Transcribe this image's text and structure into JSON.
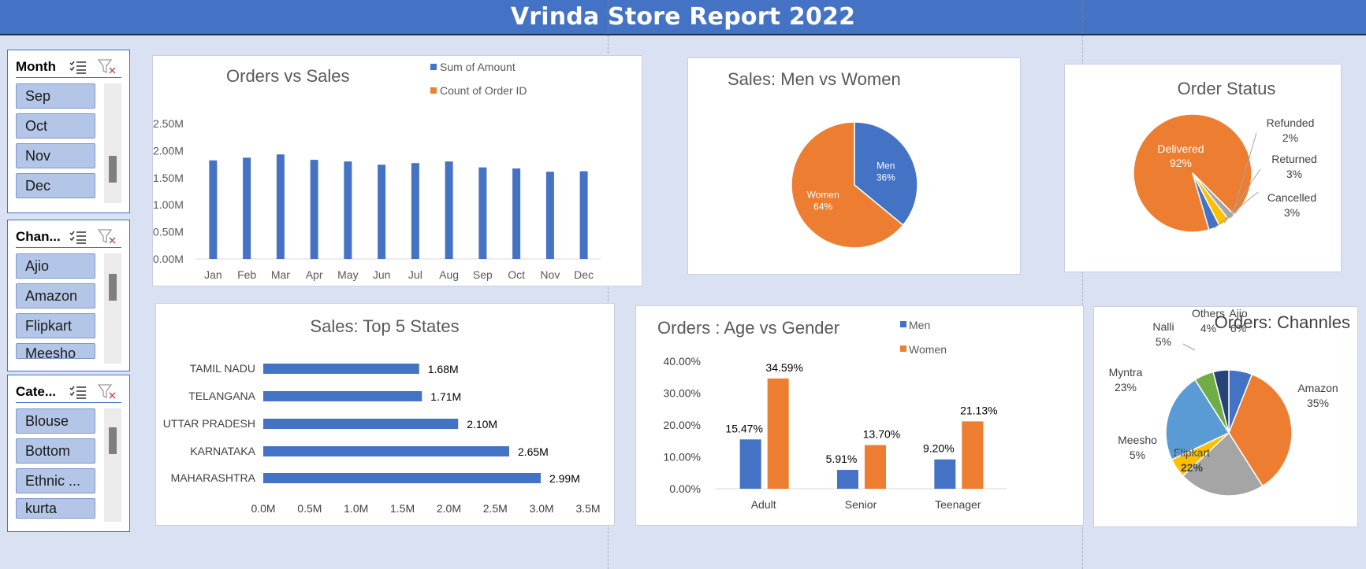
{
  "report_title": "Vrinda Store Report 2022",
  "slicers": {
    "month": {
      "title": "Month",
      "items": [
        "Sep",
        "Oct",
        "Nov",
        "Dec"
      ]
    },
    "channel": {
      "title": "Chan...",
      "items": [
        "Ajio",
        "Amazon",
        "Flipkart",
        "Meesho"
      ]
    },
    "category": {
      "title": "Cate...",
      "items": [
        "Blouse",
        "Bottom",
        "Ethnic ...",
        "kurta"
      ]
    }
  },
  "colors": {
    "blue": "#4472c4",
    "orange": "#ed7d31",
    "gray": "#a5a5a5",
    "yellow": "#ffc000",
    "lightblue": "#5b9bd5",
    "green": "#70ad47",
    "navy": "#264478"
  },
  "chart_data": [
    {
      "id": "orders_vs_sales",
      "type": "bar",
      "title": "Orders vs Sales",
      "legend": [
        "Sum of Amount",
        "Count of Order ID"
      ],
      "categories": [
        "Jan",
        "Feb",
        "Mar",
        "Apr",
        "May",
        "Jun",
        "Jul",
        "Aug",
        "Sep",
        "Oct",
        "Nov",
        "Dec"
      ],
      "series": [
        {
          "name": "Sum of Amount",
          "values": [
            1.82,
            1.87,
            1.93,
            1.83,
            1.8,
            1.74,
            1.77,
            1.8,
            1.69,
            1.67,
            1.61,
            1.62
          ]
        }
      ],
      "yticks": [
        "0.00M",
        "0.50M",
        "1.00M",
        "1.50M",
        "2.00M",
        "2.50M"
      ],
      "ylim": [
        0,
        2.5
      ]
    },
    {
      "id": "sales_men_women",
      "type": "pie",
      "title": "Sales: Men vs Women",
      "labels": [
        "Men",
        "Women"
      ],
      "values": [
        36,
        64
      ],
      "display": [
        "36%",
        "64%"
      ]
    },
    {
      "id": "order_status",
      "type": "pie",
      "title": "Order Status",
      "labels": [
        "Delivered",
        "Refunded",
        "Returned",
        "Cancelled"
      ],
      "values": [
        92,
        2,
        3,
        3
      ],
      "display": [
        "92%",
        "2%",
        "3%",
        "3%"
      ]
    },
    {
      "id": "top5_states",
      "type": "bar",
      "orientation": "horizontal",
      "title": "Sales: Top 5 States",
      "categories": [
        "TAMIL NADU",
        "TELANGANA",
        "UTTAR PRADESH",
        "KARNATAKA",
        "MAHARASHTRA"
      ],
      "values": [
        1.68,
        1.71,
        2.1,
        2.65,
        2.99
      ],
      "value_labels": [
        "1.68M",
        "1.71M",
        "2.10M",
        "2.65M",
        "2.99M"
      ],
      "xticks": [
        "0.0M",
        "0.5M",
        "1.0M",
        "1.5M",
        "2.0M",
        "2.5M",
        "3.0M",
        "3.5M"
      ],
      "xlim": [
        0,
        3.5
      ]
    },
    {
      "id": "age_vs_gender",
      "type": "bar",
      "title": "Orders : Age vs Gender",
      "legend": [
        "Men",
        "Women"
      ],
      "categories": [
        "Adult",
        "Senior",
        "Teenager"
      ],
      "series": [
        {
          "name": "Men",
          "values": [
            15.47,
            5.91,
            9.2
          ],
          "labels": [
            "15.47%",
            "5.91%",
            "9.20%"
          ]
        },
        {
          "name": "Women",
          "values": [
            34.59,
            13.7,
            21.13
          ],
          "labels": [
            "34.59%",
            "13.70%",
            "21.13%"
          ]
        }
      ],
      "yticks": [
        "0.00%",
        "10.00%",
        "20.00%",
        "30.00%",
        "40.00%"
      ],
      "ylim": [
        0,
        40
      ]
    },
    {
      "id": "orders_channels",
      "type": "pie",
      "title": "Orders: Channles",
      "labels": [
        "Ajio",
        "Amazon",
        "Flipkart",
        "Meesho",
        "Myntra",
        "Nalli",
        "Others"
      ],
      "values": [
        6,
        35,
        22,
        5,
        23,
        5,
        4
      ],
      "display": [
        "6%",
        "35%",
        "22%",
        "5%",
        "23%",
        "5%",
        "4%"
      ]
    }
  ]
}
